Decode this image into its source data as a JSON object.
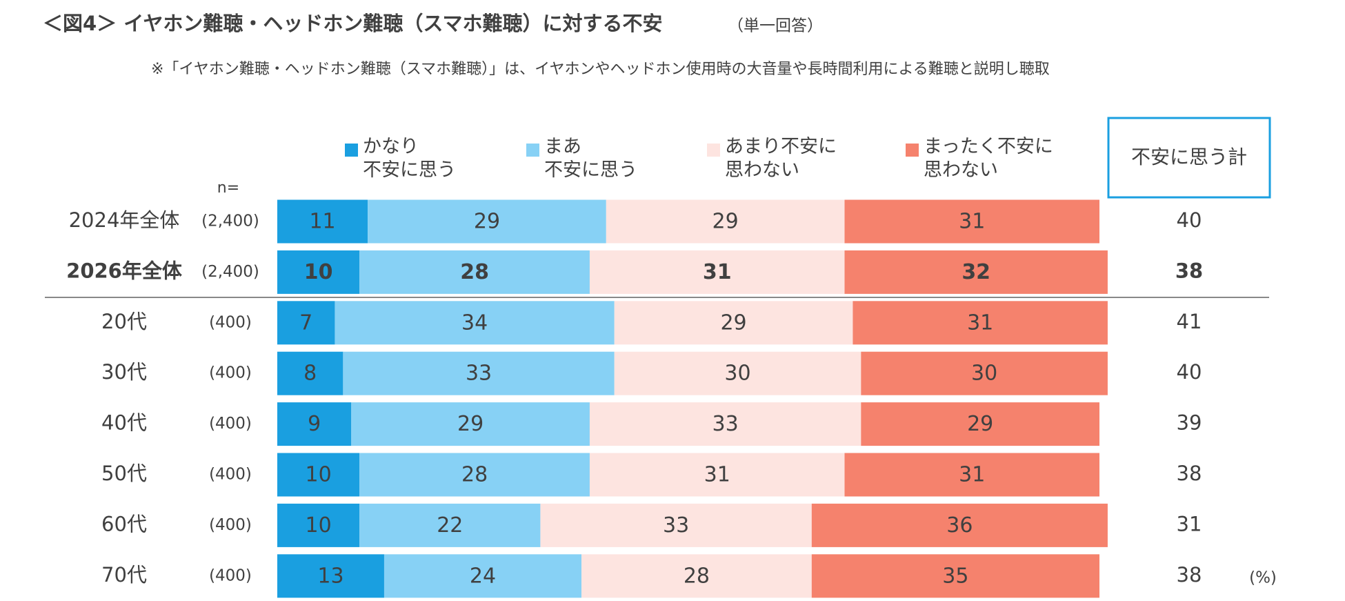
{
  "chart_data": {
    "type": "stacked-bar-horizontal",
    "title": "＜図4＞ イヤホン難聴・ヘッドホン難聴（スマホ難聴）に対する不安",
    "subtitle": "（単一回答）",
    "note": "※「イヤホン難聴・ヘッドホン難聴（スマホ難聴）」は、イヤホンやヘッドホン使用時の大音量や長時間利用による難聴と説明し聴取",
    "n_label": "n=",
    "unit_label": "(%)",
    "categories": [
      "2024年全体",
      "2026年全体",
      "20代",
      "30代",
      "40代",
      "50代",
      "60代",
      "70代"
    ],
    "sample_sizes": [
      "(2,400)",
      "(2,400)",
      "(400)",
      "(400)",
      "(400)",
      "(400)",
      "(400)",
      "(400)"
    ],
    "bold_rows": [
      1
    ],
    "xlim": [
      0,
      100
    ],
    "series": [
      {
        "name": "かなり\n不安に思う",
        "color": "#1a9fe0",
        "label_color": "#ffffff",
        "values": [
          11,
          10,
          7,
          8,
          9,
          10,
          10,
          13
        ]
      },
      {
        "name": "まあ\n不安に思う",
        "color": "#87d1f5",
        "label_color": "#ffffff",
        "values": [
          29,
          28,
          34,
          33,
          29,
          28,
          22,
          24
        ]
      },
      {
        "name": "あまり不安に\n思わない",
        "color": "#fde4e0",
        "label_color": "#404040",
        "values": [
          29,
          31,
          29,
          30,
          33,
          31,
          33,
          28
        ]
      },
      {
        "name": "まったく不安に\n思わない",
        "color": "#f5826d",
        "label_color": "#ffffff",
        "values": [
          31,
          32,
          31,
          30,
          29,
          31,
          36,
          35
        ]
      }
    ],
    "total": {
      "name": "不安に思う計",
      "color": "#1a9fe0",
      "values": [
        40,
        38,
        41,
        40,
        39,
        38,
        31,
        38
      ]
    }
  }
}
